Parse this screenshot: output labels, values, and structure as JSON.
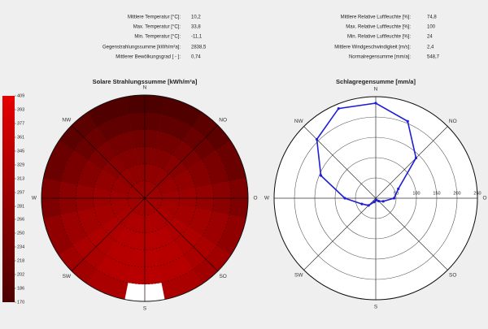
{
  "stats_left": [
    {
      "label": "Mittlere Temperatur [°C]:",
      "value": "10,2"
    },
    {
      "label": "Max. Temperatur [°C]:",
      "value": "33,8"
    },
    {
      "label": "Min. Temperatur [°C]:",
      "value": "-11,1"
    },
    {
      "label": "Gegenstrahlungssumme [kWh/m²a]:",
      "value": "2838,5"
    },
    {
      "label": "Mittlerer Bewölkungsgrad [ - ]:",
      "value": "0,74"
    }
  ],
  "stats_right": [
    {
      "label": "Mittlere Relative Luftfeuchte [%]:",
      "value": "74,8"
    },
    {
      "label": "Max. Relative Luftfeuchte [%]:",
      "value": "100"
    },
    {
      "label": "Min. Relative Luftfeuchte [%]:",
      "value": "24"
    },
    {
      "label": "Mittlere Windgeschwindigkeit [m/s]:",
      "value": "2,4"
    },
    {
      "label": "Normalregensumme [mm/a]:",
      "value": "548,7"
    }
  ],
  "chart_data": [
    {
      "type": "polar-heatmap",
      "title": "Solare Strahlungssumme [kWh/m²a]",
      "categories": [
        "N",
        null,
        "NO",
        null,
        "O",
        null,
        "SO",
        null,
        "S",
        null,
        "SW",
        null,
        "W",
        null,
        "NW",
        null
      ],
      "values": [
        [
          290,
          291,
          293,
          296,
          300,
          304,
          307,
          309,
          310,
          309,
          307,
          304,
          300,
          296,
          293,
          291
        ],
        [
          275,
          277,
          282,
          290,
          300,
          310,
          318,
          323,
          325,
          323,
          318,
          310,
          300,
          290,
          282,
          277
        ],
        [
          255,
          258,
          267,
          280,
          295,
          310,
          323,
          332,
          335,
          332,
          323,
          310,
          295,
          280,
          267,
          258
        ],
        [
          230,
          234,
          246,
          264,
          285,
          306,
          324,
          336,
          340,
          336,
          324,
          306,
          285,
          264,
          246,
          234
        ],
        [
          200,
          205,
          221,
          243,
          270,
          297,
          319,
          335,
          340,
          335,
          319,
          297,
          270,
          243,
          221,
          205
        ],
        [
          175,
          181,
          197,
          221,
          250,
          279,
          303,
          319,
          null,
          319,
          303,
          279,
          250,
          221,
          197,
          181
        ]
      ],
      "colorbar": {
        "lim": [
          170,
          409
        ],
        "ticks": [
          409,
          393,
          377,
          361,
          345,
          329,
          313,
          297,
          281,
          266,
          250,
          234,
          218,
          202,
          186,
          170
        ],
        "colors": [
          "#4a0000",
          "#e60000"
        ]
      }
    },
    {
      "type": "polar-line",
      "title": "Schlagregensumme [mm/a]",
      "categories": [
        "N",
        null,
        "NO",
        null,
        "O",
        null,
        "SO",
        null,
        "S",
        null,
        "SW",
        null,
        "W",
        null,
        "NW",
        null
      ],
      "values": [
        234,
        205,
        140,
        60,
        45,
        20,
        10,
        5,
        5,
        10,
        25,
        37,
        76,
        146,
        205,
        239
      ],
      "color": "#1f1fd6",
      "rlim": [
        0,
        250
      ],
      "rticks": [
        50,
        100,
        150,
        200,
        250
      ]
    }
  ]
}
